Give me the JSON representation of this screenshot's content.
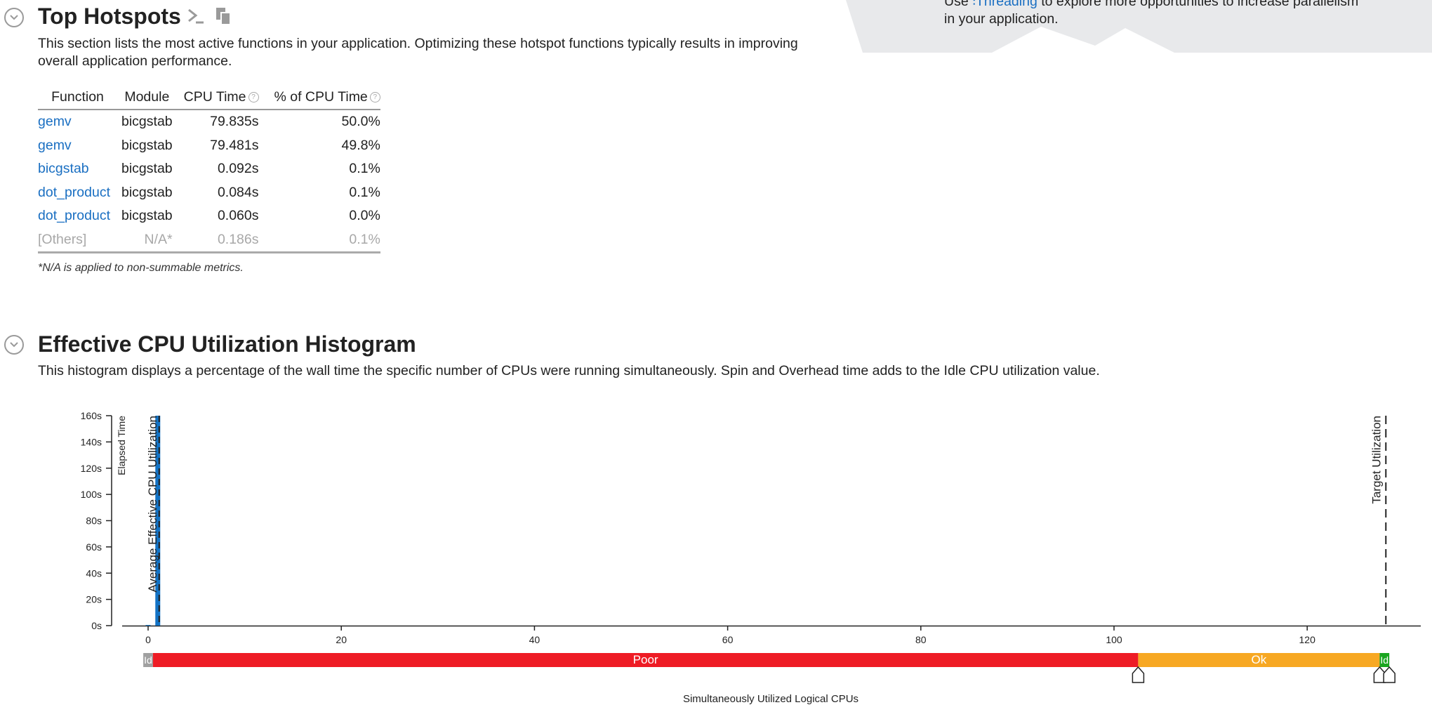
{
  "top_hotspots": {
    "title": "Top Hotspots",
    "description": "This section lists the most active functions in your application. Optimizing these hotspot functions typically results in improving overall application performance.",
    "columns": [
      "Function",
      "Module",
      "CPU Time",
      "% of CPU Time"
    ],
    "help_glyph": "?",
    "rows": [
      {
        "function": "gemv",
        "module": "bicgstab",
        "cpu_time": "79.835s",
        "pct": "50.0%"
      },
      {
        "function": "gemv",
        "module": "bicgstab",
        "cpu_time": "79.481s",
        "pct": "49.8%"
      },
      {
        "function": "bicgstab",
        "module": "bicgstab",
        "cpu_time": "0.092s",
        "pct": "0.1%"
      },
      {
        "function": "dot_product",
        "module": "bicgstab",
        "cpu_time": "0.084s",
        "pct": "0.1%"
      },
      {
        "function": "dot_product",
        "module": "bicgstab",
        "cpu_time": "0.060s",
        "pct": "0.0%"
      }
    ],
    "others": {
      "function": "[Others]",
      "module": "N/A*",
      "cpu_time": "0.186s",
      "pct": "0.1%"
    },
    "footnote": "*N/A is applied to non-summable metrics."
  },
  "tip": {
    "prefix": "Use",
    "link": "Threading",
    "suffix": "to explore more opportunities to increase parallelism",
    "line2": "in your application."
  },
  "histogram": {
    "title": "Effective CPU Utilization Histogram",
    "description": "This histogram displays a percentage of the wall time the specific number of CPUs were running simultaneously. Spin and Overhead time adds to the Idle CPU utilization value."
  },
  "chart_data": {
    "type": "bar",
    "ylabel": "Elapsed Time",
    "xlabel": "Simultaneously Utilized Logical CPUs",
    "ylim": [
      0,
      160
    ],
    "xlim": [
      0,
      130
    ],
    "y_ticks": [
      "0s",
      "20s",
      "40s",
      "60s",
      "80s",
      "100s",
      "120s",
      "140s",
      "160s"
    ],
    "x_ticks": [
      "0",
      "20",
      "40",
      "60",
      "80",
      "100",
      "120"
    ],
    "bars": [
      {
        "x": 0,
        "value": 0.5
      },
      {
        "x": 1,
        "value": 160
      }
    ],
    "average_label": "Average Effective CPU Utilization",
    "average_value": 1,
    "target_label": "Target Utilization",
    "target_value": 128,
    "bar_color": "#1373c5",
    "zones": [
      {
        "label": "Id",
        "from": -0.5,
        "to": 0.5,
        "color": "#a0a0a0"
      },
      {
        "label": "Poor",
        "from": 0.5,
        "to": 102.5,
        "color": "#ee1c25"
      },
      {
        "label": "Ok",
        "from": 102.5,
        "to": 127.5,
        "color": "#f7a823"
      },
      {
        "label": "Id",
        "from": 127.5,
        "to": 128.5,
        "color": "#1aa520"
      }
    ],
    "zone_markers": [
      102.5,
      127.5,
      128.5
    ]
  },
  "icons": {
    "collapse": "chevron-down-icon",
    "console": "console-prompt-icon",
    "copy": "copy-icon",
    "threading": "threading-icon"
  }
}
